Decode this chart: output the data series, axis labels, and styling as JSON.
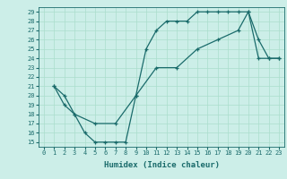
{
  "xlabel": "Humidex (Indice chaleur)",
  "background_color": "#cceee8",
  "grid_color": "#aaddcc",
  "line_color": "#1a6b6b",
  "xlim": [
    -0.5,
    23.5
  ],
  "ylim": [
    14.5,
    29.5
  ],
  "xticks": [
    0,
    1,
    2,
    3,
    4,
    5,
    6,
    7,
    8,
    9,
    10,
    11,
    12,
    13,
    14,
    15,
    16,
    17,
    18,
    19,
    20,
    21,
    22,
    23
  ],
  "yticks": [
    15,
    16,
    17,
    18,
    19,
    20,
    21,
    22,
    23,
    24,
    25,
    26,
    27,
    28,
    29
  ],
  "line1_x": [
    1,
    2,
    3,
    4,
    5,
    6,
    7,
    8,
    9,
    10,
    11,
    12,
    13,
    14,
    15,
    16,
    17,
    18,
    19,
    20,
    21,
    22,
    23
  ],
  "line1_y": [
    21,
    19,
    18,
    16,
    15,
    15,
    15,
    15,
    20,
    25,
    27,
    28,
    28,
    28,
    29,
    29,
    29,
    29,
    29,
    29,
    26,
    24,
    24
  ],
  "line2_x": [
    1,
    2,
    3,
    5,
    7,
    9,
    11,
    13,
    15,
    17,
    19,
    20,
    21,
    22,
    23
  ],
  "line2_y": [
    21,
    20,
    18,
    17,
    17,
    20,
    23,
    23,
    25,
    26,
    27,
    29,
    24,
    24,
    24
  ],
  "xlabel_fontsize": 6.5,
  "tick_fontsize": 5,
  "line_width": 0.9,
  "marker_size": 3
}
